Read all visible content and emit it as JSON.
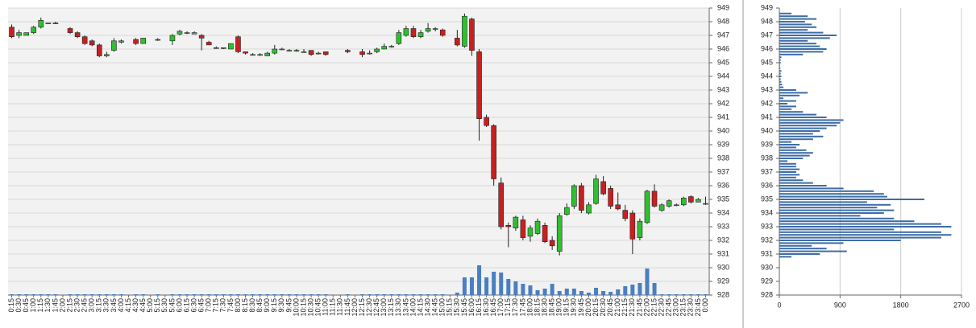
{
  "chart_data": [
    {
      "type": "candlestick",
      "categories": [
        "0:15",
        "0:30",
        "0:45",
        "1:00",
        "1:15",
        "1:30",
        "1:45",
        "2:00",
        "2:15",
        "2:30",
        "2:45",
        "3:00",
        "3:15",
        "3:30",
        "3:45",
        "4:00",
        "4:15",
        "4:30",
        "4:45",
        "5:00",
        "5:15",
        "5:30",
        "5:45",
        "6:00",
        "6:15",
        "6:30",
        "6:45",
        "7:00",
        "7:15",
        "7:30",
        "7:45",
        "8:00",
        "8:15",
        "8:30",
        "8:45",
        "9:00",
        "9:15",
        "9:30",
        "9:45",
        "10:00",
        "10:15",
        "10:30",
        "10:45",
        "11:00",
        "11:15",
        "11:30",
        "11:45",
        "12:00",
        "12:15",
        "12:30",
        "12:45",
        "13:00",
        "13:15",
        "13:30",
        "13:45",
        "14:00",
        "14:15",
        "14:30",
        "14:45",
        "15:00",
        "15:15",
        "15:30",
        "15:45",
        "16:00",
        "16:15",
        "16:30",
        "16:45",
        "17:00",
        "17:15",
        "17:30",
        "17:45",
        "18:00",
        "18:15",
        "18:30",
        "18:45",
        "19:00",
        "19:15",
        "19:30",
        "19:45",
        "20:00",
        "20:15",
        "20:30",
        "20:45",
        "21:00",
        "21:15",
        "21:30",
        "21:45",
        "22:00",
        "22:15",
        "22:30",
        "22:45",
        "23:00",
        "23:15",
        "23:30",
        "23:45",
        "0:00"
      ],
      "open": [
        947.6,
        947.0,
        947.0,
        947.2,
        947.6,
        947.9,
        947.9,
        null,
        947.5,
        947.2,
        946.9,
        946.6,
        946.3,
        945.5,
        945.9,
        946.5,
        null,
        946.7,
        946.4,
        null,
        946.7,
        null,
        946.6,
        947.1,
        947.2,
        947.1,
        947.0,
        946.5,
        946.1,
        946.1,
        946.0,
        946.9,
        945.8,
        945.6,
        945.6,
        945.5,
        945.7,
        946.0,
        945.9,
        945.9,
        945.8,
        945.9,
        945.7,
        945.8,
        null,
        null,
        945.9,
        null,
        945.8,
        945.7,
        945.8,
        946.0,
        946.2,
        946.4,
        947.0,
        947.5,
        946.9,
        947.3,
        947.5,
        947.4,
        null,
        946.8,
        946.2,
        948.2,
        945.8,
        941.0,
        940.4,
        936.2,
        933.1,
        932.9,
        933.5,
        932.3,
        932.5,
        933.1,
        932.0,
        931.2,
        933.9,
        934.5,
        936.0,
        934.0,
        934.7,
        936.3,
        935.8,
        934.6,
        934.2,
        934.0,
        932.2,
        933.3,
        935.6,
        934.2,
        934.5,
        934.6,
        934.6,
        935.2,
        934.8,
        934.7
      ],
      "high": [
        947.8,
        947.4,
        947.2,
        947.7,
        948.3,
        947.9,
        948.0,
        null,
        947.6,
        947.3,
        947.0,
        946.7,
        946.4,
        945.8,
        946.8,
        946.7,
        null,
        946.8,
        946.8,
        null,
        946.8,
        null,
        947.1,
        947.4,
        947.3,
        947.3,
        947.1,
        946.6,
        946.2,
        946.1,
        946.4,
        947.0,
        945.8,
        945.7,
        945.7,
        945.8,
        946.3,
        946.1,
        946.0,
        946.0,
        946.0,
        945.9,
        945.8,
        945.8,
        null,
        null,
        946.0,
        null,
        946.0,
        945.9,
        946.1,
        946.4,
        946.3,
        947.4,
        947.7,
        947.7,
        947.4,
        947.9,
        947.6,
        947.5,
        null,
        947.4,
        948.6,
        948.3,
        946.0,
        941.2,
        940.5,
        936.6,
        933.3,
        933.8,
        933.8,
        933.1,
        933.6,
        933.3,
        932.3,
        934.0,
        934.7,
        936.1,
        936.2,
        934.8,
        936.8,
        936.7,
        936.0,
        935.5,
        934.6,
        934.2,
        933.6,
        935.7,
        936.1,
        934.7,
        935.0,
        934.7,
        935.2,
        935.3,
        935.1,
        935.2
      ],
      "low": [
        946.8,
        946.8,
        947.0,
        947.1,
        947.5,
        947.9,
        947.9,
        null,
        947.1,
        946.8,
        946.3,
        946.2,
        945.4,
        945.4,
        945.8,
        946.4,
        null,
        946.3,
        946.4,
        null,
        946.6,
        null,
        946.3,
        947.0,
        947.1,
        947.1,
        945.9,
        946.3,
        946.1,
        946.0,
        946.0,
        945.7,
        945.6,
        945.6,
        945.5,
        945.5,
        945.6,
        946.0,
        945.9,
        945.8,
        945.8,
        945.5,
        945.6,
        945.5,
        null,
        null,
        945.7,
        null,
        945.4,
        945.6,
        945.7,
        946.0,
        946.1,
        946.3,
        946.9,
        946.8,
        946.8,
        947.2,
        947.3,
        946.9,
        null,
        946.2,
        946.1,
        945.5,
        939.3,
        940.3,
        936.0,
        932.8,
        931.5,
        932.7,
        932.0,
        931.9,
        932.4,
        931.8,
        931.3,
        930.9,
        933.8,
        934.3,
        934.0,
        933.9,
        934.6,
        935.3,
        934.3,
        934.2,
        933.4,
        931.0,
        932.0,
        933.2,
        934.4,
        934.1,
        934.4,
        934.5,
        934.5,
        934.7,
        934.8,
        934.6
      ],
      "close": [
        946.9,
        947.2,
        947.2,
        947.6,
        948.1,
        947.9,
        947.9,
        null,
        947.2,
        946.9,
        946.4,
        946.3,
        945.5,
        945.6,
        946.6,
        946.6,
        null,
        946.4,
        946.8,
        null,
        946.7,
        null,
        947.0,
        947.3,
        947.2,
        947.2,
        946.8,
        946.3,
        946.1,
        946.1,
        946.4,
        945.8,
        945.7,
        945.6,
        945.6,
        945.7,
        946.0,
        946.0,
        945.9,
        945.9,
        945.8,
        945.6,
        945.7,
        945.6,
        null,
        null,
        945.8,
        null,
        945.6,
        945.7,
        946.0,
        946.2,
        946.2,
        947.2,
        947.5,
        946.9,
        947.2,
        947.5,
        947.5,
        947.0,
        null,
        946.3,
        948.4,
        945.9,
        940.9,
        940.4,
        936.5,
        933.0,
        933.0,
        933.7,
        932.2,
        932.9,
        933.4,
        931.9,
        931.6,
        933.8,
        934.4,
        936.0,
        934.2,
        934.6,
        936.5,
        935.4,
        934.5,
        934.3,
        933.6,
        932.1,
        933.4,
        935.6,
        934.5,
        934.6,
        934.9,
        934.6,
        935.1,
        934.8,
        935.0,
        934.7
      ],
      "volume": [
        100,
        100,
        100,
        100,
        100,
        100,
        100,
        null,
        100,
        100,
        100,
        100,
        100,
        100,
        100,
        100,
        null,
        100,
        100,
        null,
        100,
        null,
        100,
        100,
        100,
        100,
        100,
        100,
        100,
        100,
        100,
        100,
        100,
        100,
        100,
        100,
        100,
        100,
        100,
        100,
        100,
        100,
        100,
        100,
        null,
        null,
        100,
        null,
        100,
        100,
        100,
        100,
        100,
        100,
        100,
        100,
        100,
        100,
        100,
        100,
        null,
        300,
        2200,
        2200,
        3700,
        2200,
        2900,
        2800,
        2000,
        1700,
        1400,
        1200,
        600,
        800,
        1400,
        500,
        800,
        800,
        500,
        300,
        900,
        500,
        400,
        700,
        1100,
        1300,
        1500,
        3300,
        1500,
        100,
        100,
        100,
        100,
        100,
        100,
        100
      ],
      "ylim": [
        928,
        949
      ],
      "yticks": [
        928,
        929,
        930,
        931,
        932,
        933,
        934,
        935,
        936,
        937,
        938,
        939,
        940,
        941,
        942,
        943,
        944,
        945,
        946,
        947,
        948,
        949
      ],
      "up_color": "#2ec02e",
      "down_color": "#c82020",
      "volume_color": "#4a7fc1",
      "grid": true
    },
    {
      "type": "volume-profile",
      "levels": [
        930.8,
        931.0,
        931.2,
        931.4,
        931.6,
        931.8,
        932.0,
        932.2,
        932.4,
        932.6,
        932.8,
        933.0,
        933.2,
        933.4,
        933.6,
        933.8,
        934.0,
        934.2,
        934.4,
        934.6,
        934.8,
        935.0,
        935.2,
        935.4,
        935.6,
        935.8,
        936.0,
        936.2,
        936.4,
        936.6,
        936.8,
        937.0,
        937.2,
        937.4,
        937.6,
        937.8,
        938.0,
        938.2,
        938.4,
        938.6,
        938.8,
        939.0,
        939.2,
        939.4,
        939.6,
        939.8,
        940.0,
        940.2,
        940.4,
        940.6,
        940.8,
        941.0,
        941.2,
        941.4,
        941.6,
        941.8,
        942.0,
        942.2,
        942.4,
        942.6,
        942.8,
        943.0,
        943.2,
        943.4,
        943.6,
        943.8,
        944.0,
        944.2,
        944.4,
        944.6,
        944.8,
        945.0,
        945.2,
        945.4,
        945.6,
        945.8,
        946.0,
        946.2,
        946.4,
        946.6,
        946.8,
        947.0,
        947.2,
        947.4,
        947.6,
        947.8,
        948.0,
        948.2,
        948.4,
        948.6
      ],
      "values": [
        180,
        600,
        1000,
        700,
        480,
        950,
        1800,
        2400,
        2550,
        2400,
        1700,
        2550,
        2400,
        2000,
        1700,
        1200,
        1550,
        1700,
        1450,
        1650,
        1300,
        2150,
        1600,
        1550,
        1400,
        950,
        700,
        500,
        350,
        250,
        300,
        250,
        300,
        250,
        250,
        120,
        350,
        450,
        500,
        400,
        250,
        300,
        180,
        500,
        650,
        500,
        600,
        700,
        850,
        900,
        950,
        700,
        550,
        350,
        180,
        250,
        120,
        250,
        60,
        300,
        420,
        250,
        60,
        40,
        30,
        20,
        30,
        20,
        30,
        15,
        10,
        20,
        20,
        30,
        350,
        650,
        700,
        600,
        550,
        420,
        750,
        850,
        650,
        420,
        550,
        480,
        380,
        550,
        420,
        180
      ],
      "xlim": [
        0,
        2700
      ],
      "xticks": [
        0,
        900,
        1800,
        2700
      ],
      "ylim": [
        928,
        949
      ],
      "yticks": [
        928,
        929,
        930,
        931,
        932,
        933,
        934,
        935,
        936,
        937,
        938,
        939,
        940,
        941,
        942,
        943,
        944,
        945,
        946,
        947,
        948,
        949
      ],
      "color": "#3d6ca6",
      "grid": true
    }
  ]
}
